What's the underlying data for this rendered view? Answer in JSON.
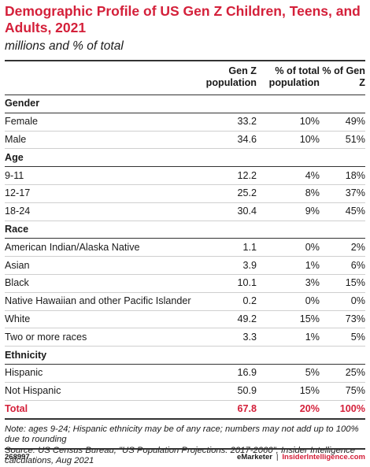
{
  "chart_data": {
    "type": "table",
    "title": "Demographic Profile of US Gen Z Children, Teens, and Adults, 2021",
    "subtitle": "millions and % of total",
    "columns": [
      "",
      "Gen Z population",
      "% of total population",
      "% of Gen Z"
    ],
    "sections": [
      {
        "name": "Gender",
        "rows": [
          {
            "label": "Female",
            "values": [
              "33.2",
              "10%",
              "49%"
            ]
          },
          {
            "label": "Male",
            "values": [
              "34.6",
              "10%",
              "51%"
            ]
          }
        ]
      },
      {
        "name": "Age",
        "rows": [
          {
            "label": "9-11",
            "values": [
              "12.2",
              "4%",
              "18%"
            ]
          },
          {
            "label": "12-17",
            "values": [
              "25.2",
              "8%",
              "37%"
            ]
          },
          {
            "label": "18-24",
            "values": [
              "30.4",
              "9%",
              "45%"
            ]
          }
        ]
      },
      {
        "name": "Race",
        "rows": [
          {
            "label": "American Indian/Alaska Native",
            "values": [
              "1.1",
              "0%",
              "2%"
            ]
          },
          {
            "label": "Asian",
            "values": [
              "3.9",
              "1%",
              "6%"
            ]
          },
          {
            "label": "Black",
            "values": [
              "10.1",
              "3%",
              "15%"
            ]
          },
          {
            "label": "Native Hawaiian and other Pacific Islander",
            "values": [
              "0.2",
              "0%",
              "0%"
            ]
          },
          {
            "label": "White",
            "values": [
              "49.2",
              "15%",
              "73%"
            ]
          },
          {
            "label": "Two or more races",
            "values": [
              "3.3",
              "1%",
              "5%"
            ]
          }
        ]
      },
      {
        "name": "Ethnicity",
        "rows": [
          {
            "label": "Hispanic",
            "values": [
              "16.9",
              "5%",
              "25%"
            ]
          },
          {
            "label": "Not Hispanic",
            "values": [
              "50.9",
              "15%",
              "75%"
            ]
          }
        ]
      }
    ],
    "total": {
      "label": "Total",
      "values": [
        "67.8",
        "20%",
        "100%"
      ]
    },
    "note": "Note: ages 9-24; Hispanic ethnicity may be of any race; numbers may not add up to 100% due to rounding",
    "source": "Source: US Census Bureau, \"US Population Projections: 2017-2060\"; Insider Intelligence calculations, Aug 2021"
  },
  "footer": {
    "chart_id": "268997",
    "brand_emarketer": "eMarketer",
    "separator": "|",
    "brand_insider": "InsiderIntelligence.com"
  },
  "colors": {
    "accent": "#d4203a",
    "text": "#1a1a1a",
    "rule": "#333333"
  }
}
